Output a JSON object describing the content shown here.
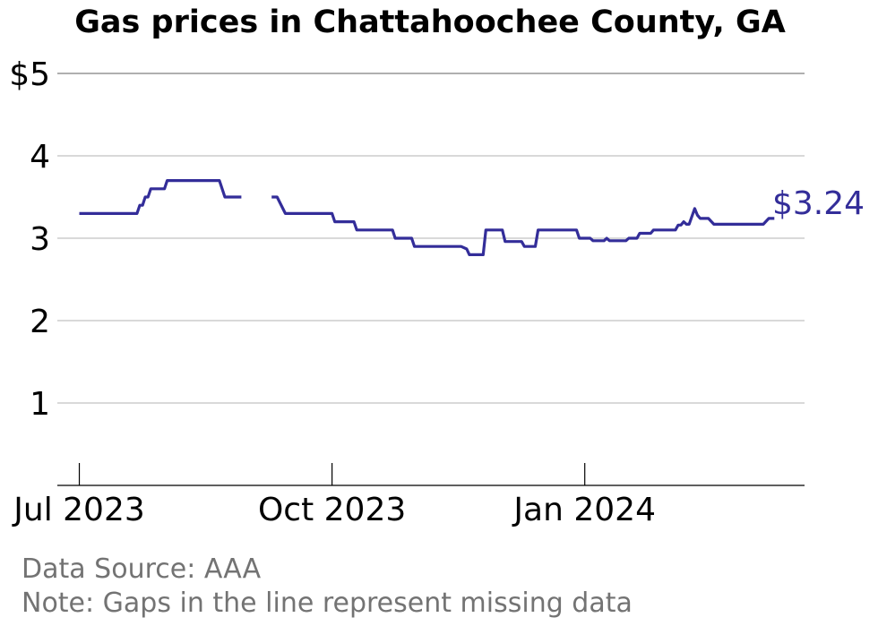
{
  "chart_data": {
    "type": "line",
    "title": "Gas prices in Chattahoochee County, GA",
    "xlabel": "",
    "ylabel": "",
    "ylim": [
      0,
      5
    ],
    "yticks": [
      {
        "value": 1,
        "label": "1"
      },
      {
        "value": 2,
        "label": "2"
      },
      {
        "value": 3,
        "label": "3"
      },
      {
        "value": 4,
        "label": "4"
      },
      {
        "value": 5,
        "label": "$5"
      }
    ],
    "xlim": [
      "2023-06-23",
      "2024-03-21"
    ],
    "xticks": [
      {
        "date": "2023-07-01",
        "label": "Jul 2023"
      },
      {
        "date": "2023-10-01",
        "label": "Oct 2023"
      },
      {
        "date": "2024-01-01",
        "label": "Jan 2024"
      }
    ],
    "grid": true,
    "line_color": "#332d99",
    "last_value_label": "$3.24",
    "series": [
      {
        "segments": [
          [
            [
              "2023-07-01",
              3.3
            ],
            [
              "2023-07-22",
              3.3
            ],
            [
              "2023-07-23",
              3.4
            ],
            [
              "2023-07-24",
              3.4
            ],
            [
              "2023-07-25",
              3.5
            ],
            [
              "2023-07-26",
              3.5
            ],
            [
              "2023-07-27",
              3.6
            ],
            [
              "2023-08-01",
              3.6
            ],
            [
              "2023-08-02",
              3.7
            ],
            [
              "2023-08-21",
              3.7
            ],
            [
              "2023-08-23",
              3.5
            ],
            [
              "2023-08-29",
              3.5
            ]
          ],
          [
            [
              "2023-09-09",
              3.5
            ],
            [
              "2023-09-11",
              3.5
            ],
            [
              "2023-09-14",
              3.3
            ],
            [
              "2023-10-01",
              3.3
            ],
            [
              "2023-10-02",
              3.2
            ],
            [
              "2023-10-09",
              3.2
            ],
            [
              "2023-10-10",
              3.1
            ],
            [
              "2023-10-23",
              3.1
            ],
            [
              "2023-10-24",
              3.0
            ],
            [
              "2023-10-30",
              3.0
            ],
            [
              "2023-10-31",
              2.9
            ],
            [
              "2023-11-17",
              2.9
            ],
            [
              "2023-11-19",
              2.87
            ],
            [
              "2023-11-20",
              2.8
            ],
            [
              "2023-11-25",
              2.8
            ],
            [
              "2023-11-26",
              3.1
            ],
            [
              "2023-12-02",
              3.1
            ],
            [
              "2023-12-03",
              2.96
            ],
            [
              "2023-12-09",
              2.96
            ],
            [
              "2023-12-10",
              2.9
            ],
            [
              "2023-12-14",
              2.9
            ],
            [
              "2023-12-15",
              3.1
            ],
            [
              "2023-12-29",
              3.1
            ],
            [
              "2023-12-30",
              3.0
            ],
            [
              "2024-01-03",
              3.0
            ],
            [
              "2024-01-04",
              2.97
            ],
            [
              "2024-01-08",
              2.97
            ],
            [
              "2024-01-09",
              3.0
            ],
            [
              "2024-01-10",
              2.97
            ],
            [
              "2024-01-16",
              2.97
            ],
            [
              "2024-01-17",
              3.0
            ],
            [
              "2024-01-20",
              3.0
            ],
            [
              "2024-01-21",
              3.06
            ],
            [
              "2024-01-25",
              3.06
            ],
            [
              "2024-01-26",
              3.1
            ],
            [
              "2024-02-03",
              3.1
            ],
            [
              "2024-02-04",
              3.16
            ],
            [
              "2024-02-05",
              3.16
            ],
            [
              "2024-02-06",
              3.2
            ],
            [
              "2024-02-07",
              3.17
            ],
            [
              "2024-02-08",
              3.17
            ],
            [
              "2024-02-10",
              3.36
            ],
            [
              "2024-02-11",
              3.28
            ],
            [
              "2024-02-12",
              3.24
            ],
            [
              "2024-02-15",
              3.24
            ],
            [
              "2024-02-17",
              3.17
            ],
            [
              "2024-03-06",
              3.17
            ],
            [
              "2024-03-08",
              3.24
            ],
            [
              "2024-03-10",
              3.24
            ]
          ]
        ]
      }
    ]
  },
  "footer": {
    "source": "Data Source: AAA",
    "note": "Note: Gaps in the line represent missing data"
  }
}
